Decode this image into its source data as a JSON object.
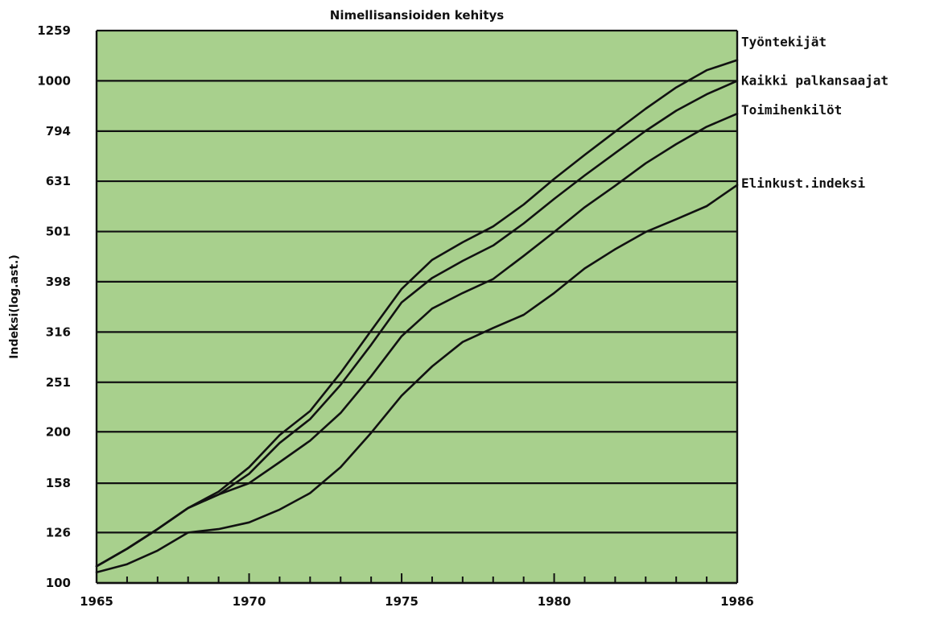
{
  "chart_data": {
    "type": "line",
    "title": "Nimellisansioiden kehitys",
    "xlabel": "",
    "ylabel": "Indeksi(log.ast.)",
    "y_scale": "log",
    "ylim": [
      100,
      1259
    ],
    "xlim": [
      1965,
      1986
    ],
    "y_ticks": [
      100,
      126,
      158,
      200,
      251,
      316,
      398,
      501,
      631,
      794,
      1000,
      1259
    ],
    "x_ticks": [
      1965,
      1970,
      1975,
      1980,
      1986
    ],
    "x_minor_ticks": [
      1966,
      1967,
      1968,
      1969,
      1971,
      1972,
      1973,
      1974,
      1976,
      1977,
      1978,
      1979,
      1981,
      1982,
      1983,
      1984,
      1985
    ],
    "grid": true,
    "legend": "labels at right end of lines",
    "colors": {
      "background": "#a8d08d",
      "lines": "#111111"
    },
    "x": [
      1965,
      1966,
      1967,
      1968,
      1969,
      1970,
      1971,
      1972,
      1973,
      1974,
      1975,
      1976,
      1977,
      1978,
      1979,
      1980,
      1981,
      1982,
      1983,
      1984,
      1985,
      1986
    ],
    "series": [
      {
        "name": "Työntekijät",
        "values": [
          108,
          117,
          128,
          141,
          152,
          170,
          197,
          220,
          262,
          318,
          385,
          440,
          477,
          513,
          567,
          638,
          712,
          792,
          880,
          970,
          1050,
          1100
        ]
      },
      {
        "name": "Kaikki palkansaajat",
        "values": [
          108,
          117,
          128,
          141,
          150,
          165,
          190,
          212,
          248,
          298,
          362,
          405,
          438,
          470,
          520,
          582,
          648,
          718,
          795,
          872,
          940,
          1000
        ]
      },
      {
        "name": "Toimihenkilöt",
        "values": [
          108,
          117,
          128,
          141,
          150,
          158,
          174,
          192,
          218,
          258,
          310,
          352,
          378,
          403,
          448,
          500,
          560,
          618,
          685,
          748,
          810,
          860
        ]
      },
      {
        "name": "Elinkust.indeksi",
        "values": [
          105,
          109,
          116,
          126,
          128,
          132,
          140,
          151,
          170,
          199,
          236,
          270,
          302,
          322,
          342,
          378,
          423,
          462,
          500,
          530,
          563,
          620
        ]
      }
    ]
  }
}
